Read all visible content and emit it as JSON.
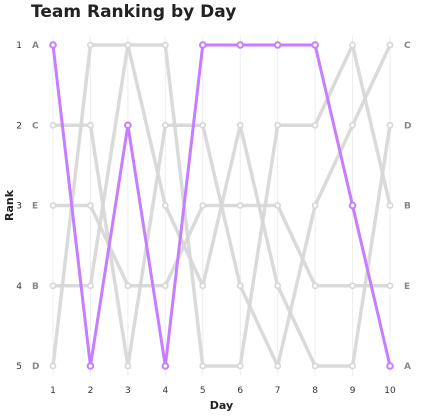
{
  "chart_data": {
    "type": "line",
    "chart_kind": "bump",
    "title": "Team Ranking by Day",
    "xlabel": "Day",
    "ylabel": "Rank",
    "x": [
      1,
      2,
      3,
      4,
      5,
      6,
      7,
      8,
      9,
      10
    ],
    "y_ticks": [
      1,
      2,
      3,
      4,
      5
    ],
    "ylim": [
      1,
      5
    ],
    "y_inverted": true,
    "grid": "vertical",
    "highlight_series": "A",
    "highlight_color": "#c77dff",
    "background_series_color": "#d6d6d6",
    "start_labels": [
      "A",
      "C",
      "E",
      "B",
      "D"
    ],
    "end_labels": [
      "C",
      "D",
      "B",
      "E",
      "A"
    ],
    "series": [
      {
        "name": "A",
        "values": [
          1,
          5,
          2,
          5,
          1,
          1,
          1,
          1,
          3,
          5
        ]
      },
      {
        "name": "B",
        "values": [
          4,
          4,
          1,
          1,
          5,
          5,
          2,
          2,
          1,
          3
        ]
      },
      {
        "name": "C",
        "values": [
          2,
          2,
          5,
          2,
          2,
          4,
          5,
          3,
          2,
          1
        ]
      },
      {
        "name": "D",
        "values": [
          5,
          1,
          1,
          3,
          4,
          2,
          4,
          5,
          5,
          2
        ]
      },
      {
        "name": "E",
        "values": [
          3,
          3,
          4,
          4,
          3,
          3,
          3,
          4,
          4,
          4
        ]
      }
    ]
  }
}
